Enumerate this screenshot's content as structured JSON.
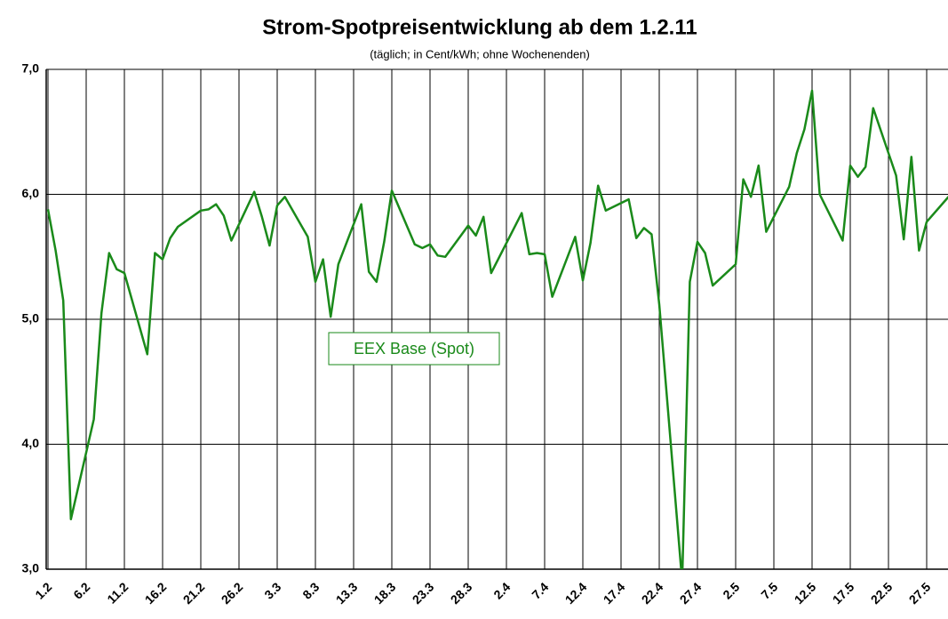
{
  "chart_data": {
    "type": "line",
    "title": "Strom-Spotpreisentwicklung ab dem 1.2.11",
    "subtitle": "(täglich; in Cent/kWh; ohne Wochenenden)",
    "x": [
      "1.2",
      "2.2",
      "3.2",
      "4.2",
      "7.2",
      "8.2",
      "9.2",
      "10.2",
      "11.2",
      "14.2",
      "15.2",
      "16.2",
      "17.2",
      "18.2",
      "21.2",
      "22.2",
      "23.2",
      "24.2",
      "25.2",
      "28.2",
      "1.3",
      "2.3",
      "3.3",
      "4.3",
      "7.3",
      "8.3",
      "9.3",
      "10.3",
      "11.3",
      "14.3",
      "15.3",
      "16.3",
      "17.3",
      "18.3",
      "21.3",
      "22.3",
      "23.3",
      "24.3",
      "25.3",
      "28.3",
      "29.3",
      "30.3",
      "31.3",
      "4.4",
      "5.4",
      "6.4",
      "7.4",
      "8.4",
      "11.4",
      "12.4",
      "13.4",
      "14.4",
      "15.4",
      "18.4",
      "19.4",
      "20.4",
      "21.4",
      "22.4",
      "25.4",
      "26.4",
      "27.4",
      "28.4",
      "29.4",
      "2.5",
      "3.5",
      "4.5",
      "5.5",
      "6.5",
      "9.5",
      "10.5",
      "11.5",
      "12.5",
      "13.5",
      "16.5",
      "17.5",
      "18.5",
      "19.5",
      "20.5",
      "23.5",
      "24.5",
      "25.5",
      "26.5",
      "27.5",
      "30.5"
    ],
    "series": [
      {
        "name": "EEX Base (Spot)",
        "color": "#1a8a1a",
        "values": [
          5.88,
          5.55,
          5.15,
          3.4,
          4.2,
          5.05,
          5.53,
          5.4,
          5.37,
          4.72,
          5.53,
          5.48,
          5.65,
          5.74,
          5.87,
          5.88,
          5.92,
          5.83,
          5.63,
          6.02,
          5.82,
          5.59,
          5.91,
          5.98,
          5.66,
          5.3,
          5.48,
          5.02,
          5.44,
          5.92,
          5.38,
          5.3,
          5.62,
          6.03,
          5.6,
          5.57,
          5.6,
          5.51,
          5.5,
          5.75,
          5.67,
          5.82,
          5.37,
          5.85,
          5.52,
          5.53,
          5.52,
          5.18,
          5.66,
          5.31,
          5.61,
          6.07,
          5.87,
          5.96,
          5.65,
          5.73,
          5.68,
          5.12,
          2.9,
          5.3,
          5.62,
          5.53,
          5.27,
          5.44,
          6.12,
          5.98,
          6.23,
          5.7,
          6.06,
          6.33,
          6.52,
          6.83,
          6.0,
          5.63,
          6.23,
          6.14,
          6.22,
          6.69,
          6.15,
          5.64,
          6.3,
          5.55,
          5.78,
          5.99
        ]
      }
    ],
    "xticks": [
      "1.2",
      "6.2",
      "11.2",
      "16.2",
      "21.2",
      "26.2",
      "3.3",
      "8.3",
      "13.3",
      "18.3",
      "23.3",
      "28.3",
      "2.4",
      "7.4",
      "12.4",
      "17.4",
      "22.4",
      "27.4",
      "2.5",
      "7.5",
      "12.5",
      "17.5",
      "22.5",
      "27.5"
    ],
    "ylim": [
      3,
      7
    ],
    "yticks": [
      {
        "value": 3,
        "label": "3,0"
      },
      {
        "value": 4,
        "label": "4,0"
      },
      {
        "value": 5,
        "label": "5,0"
      },
      {
        "value": 6,
        "label": "6,0"
      },
      {
        "value": 7,
        "label": "7,0"
      }
    ],
    "grid": true
  }
}
